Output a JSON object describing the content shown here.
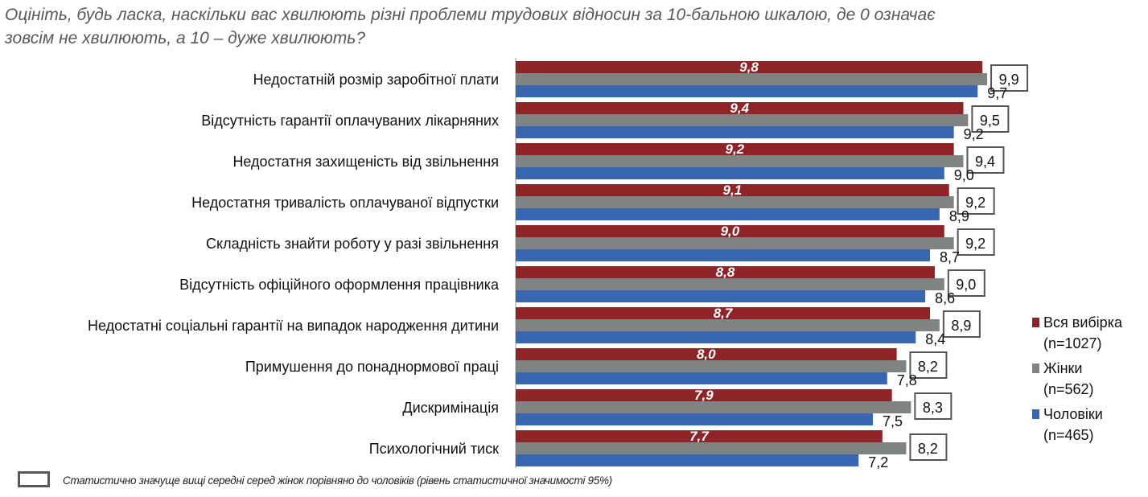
{
  "chart_data": {
    "type": "bar",
    "orientation": "horizontal",
    "title": "Оцініть, будь ласка, наскільки вас хвилюють різні проблеми трудових відносин за 10-бальною шкалою, де 0 означає зовсім не хвилюють, а 10 – дуже хвилюють?",
    "xlim": [
      0,
      10
    ],
    "grid": false,
    "legend_position": "right",
    "categories": [
      "Недостатній розмір заробітної плати",
      "Відсутність гарантії оплачуваних лікарняних",
      "Недостатня захищеність від звільнення",
      "Недостатня тривалість оплачуваної відпустки",
      "Складність знайти роботу у разі звільнення",
      "Відсутність офіційного оформлення працівника",
      "Недостатні соціальні гарантії на випадок народження дитини",
      "Примушення до понаднормової праці",
      "Дискримінація",
      "Психологічний тиск"
    ],
    "series": [
      {
        "name": "Вся вибірка",
        "sub": "(n=1027)",
        "color": "#8e2427",
        "values": [
          9.8,
          9.4,
          9.2,
          9.1,
          9.0,
          8.8,
          8.7,
          8.0,
          7.9,
          7.7
        ],
        "labels": [
          "9,8",
          "9,4",
          "9,2",
          "9,1",
          "9,0",
          "8,8",
          "8,7",
          "8,0",
          "7,9",
          "7,7"
        ]
      },
      {
        "name": "Жінки",
        "sub": "(n=562)",
        "color": "#7f8383",
        "values": [
          9.9,
          9.5,
          9.4,
          9.2,
          9.2,
          9.0,
          8.9,
          8.2,
          8.3,
          8.2
        ],
        "labels": [
          "9,9",
          "9,5",
          "9,4",
          "9,2",
          "9,2",
          "9,0",
          "8,9",
          "8,2",
          "8,3",
          "8,2"
        ],
        "significant": [
          true,
          true,
          true,
          true,
          true,
          true,
          true,
          true,
          true,
          true
        ]
      },
      {
        "name": "Чоловіки",
        "sub": "(n=465)",
        "color": "#3866b0",
        "values": [
          9.7,
          9.2,
          9.0,
          8.9,
          8.7,
          8.6,
          8.4,
          7.8,
          7.5,
          7.2
        ],
        "labels": [
          "9,7",
          "9,2",
          "9,0",
          "8,9",
          "8,7",
          "8,6",
          "8,4",
          "7,8",
          "7,5",
          "7,2"
        ]
      }
    ],
    "note": "Статистично значуще вищі середні серед жінок порівняно до чоловіків (рівень статистичної значимості 95%)"
  }
}
